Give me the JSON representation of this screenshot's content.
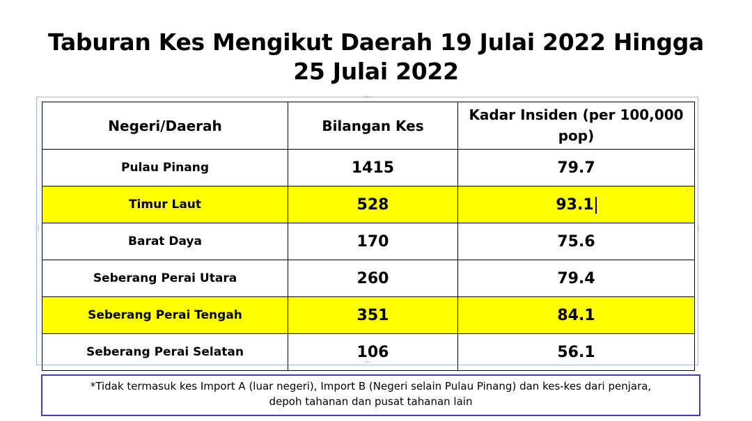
{
  "title": {
    "line1": "Taburan Kes Mengikut Daerah 19 Julai 2022 Hingga",
    "line2": "25 Julai 2022"
  },
  "table": {
    "headers": [
      "Negeri/Daerah",
      "Bilangan Kes",
      "Kadar Insiden (per 100,000 pop)"
    ],
    "rows": [
      {
        "region": "Pulau Pinang",
        "cases": "1415",
        "rate": "79.7",
        "highlight": false
      },
      {
        "region": "Timur Laut",
        "cases": "528",
        "rate": "93.1",
        "highlight": true
      },
      {
        "region": "Barat Daya",
        "cases": "170",
        "rate": "75.6",
        "highlight": false
      },
      {
        "region": "Seberang Perai Utara",
        "cases": "260",
        "rate": "79.4",
        "highlight": false
      },
      {
        "region": "Seberang Perai Tengah",
        "cases": "351",
        "rate": "84.1",
        "highlight": true
      },
      {
        "region": "Seberang Perai Selatan",
        "cases": "106",
        "rate": "56.1",
        "highlight": false
      }
    ],
    "highlight_color": "#ffff00"
  },
  "footnote": {
    "line1": "*Tidak termasuk kes Import A (luar negeri), Import B (Negeri selain Pulau Pinang) dan kes-kes dari penjara,",
    "line2": "depoh tahanan dan pusat tahanan lain"
  },
  "colors": {
    "frame_border": "#9fb6d6",
    "footnote_border": "#3f3fb0"
  }
}
